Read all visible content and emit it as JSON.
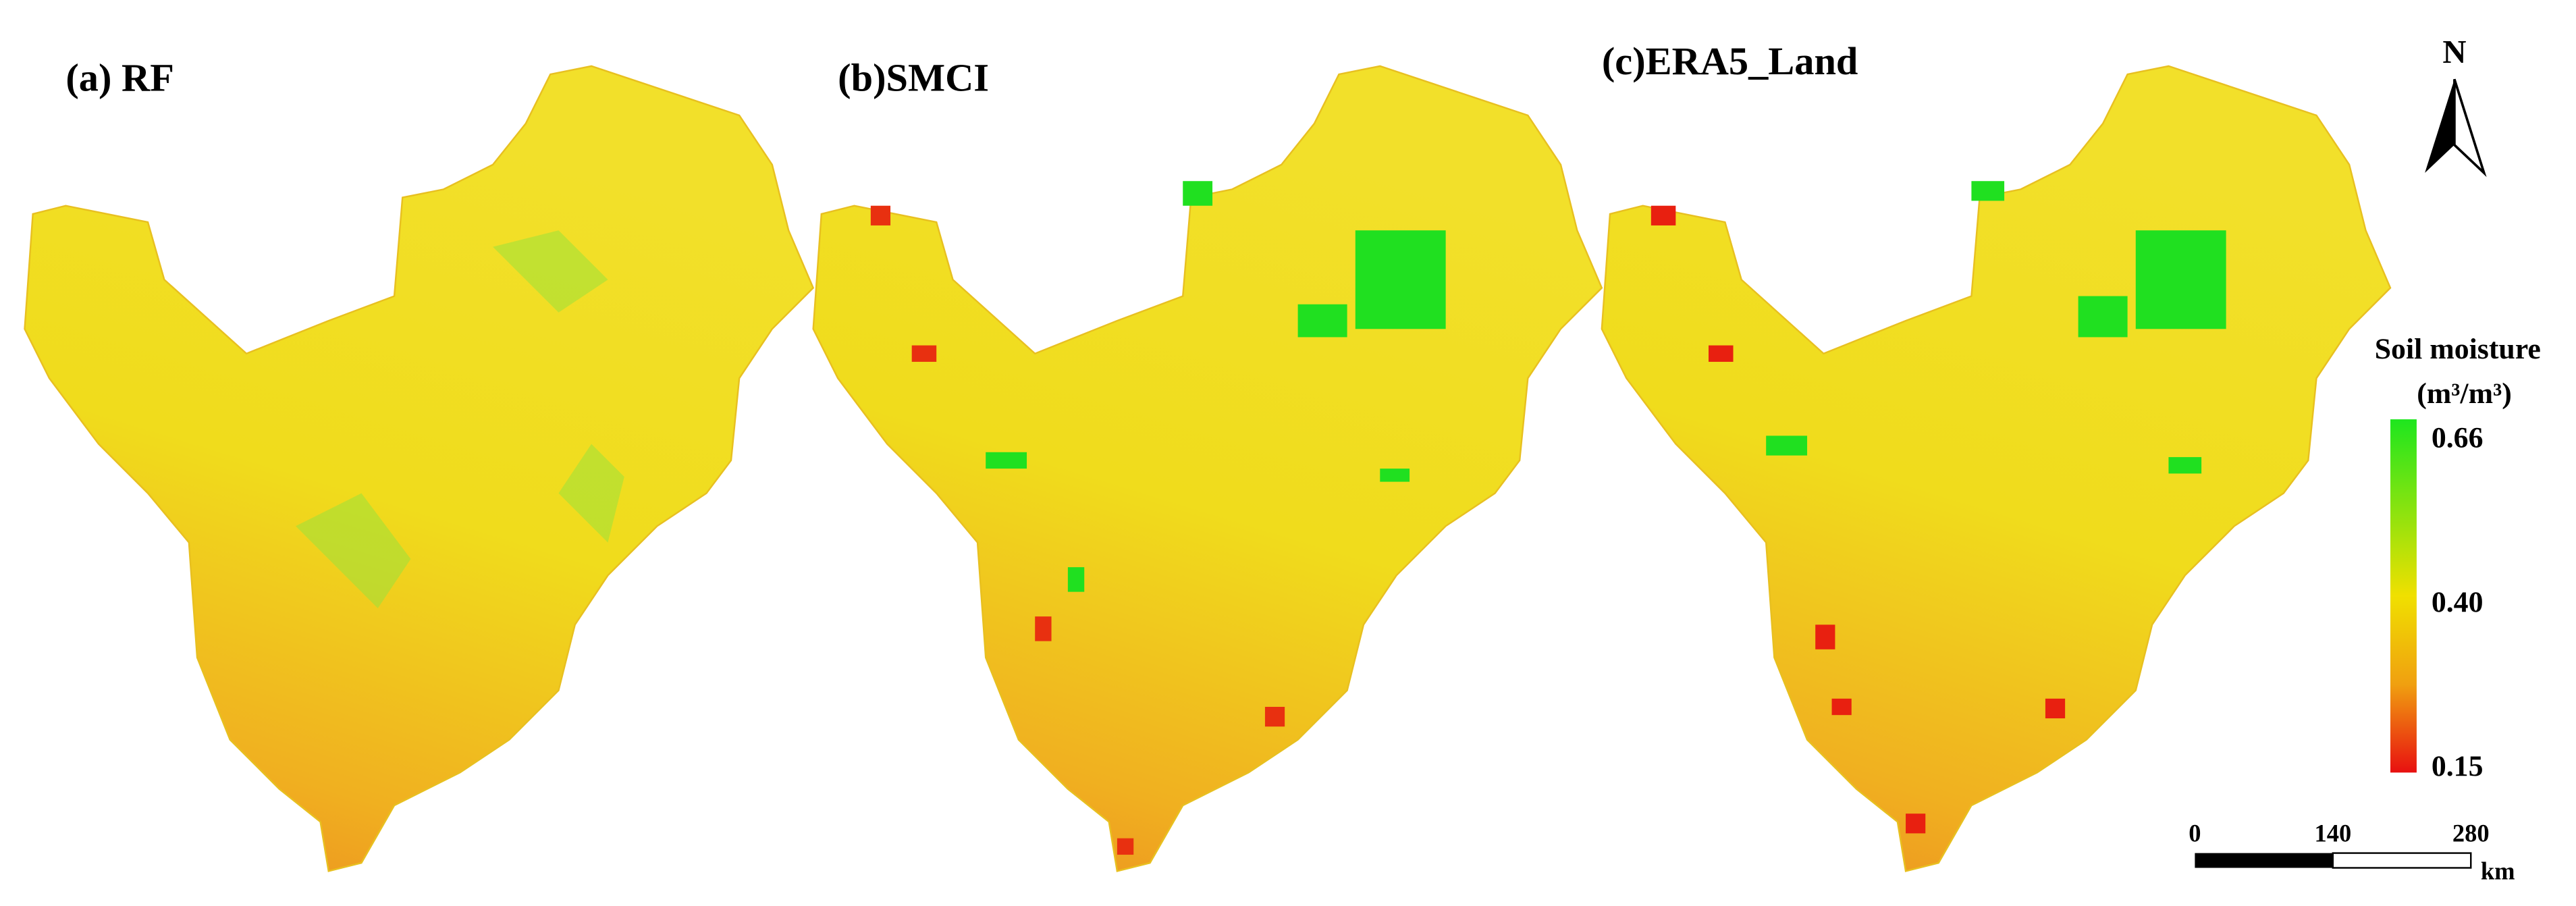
{
  "panels": [
    {
      "title": "(a) RF"
    },
    {
      "title": "(b)SMCI"
    },
    {
      "title": "(c)ERA5_Land"
    }
  ],
  "north_arrow": {
    "label": "N"
  },
  "legend": {
    "title": "Soil moisture",
    "unit": "(m³/m³)",
    "labels": [
      "0.66",
      "0.40",
      "0.15"
    ]
  },
  "scale_bar": {
    "labels": [
      "0",
      "140",
      "280"
    ],
    "unit": "km"
  }
}
